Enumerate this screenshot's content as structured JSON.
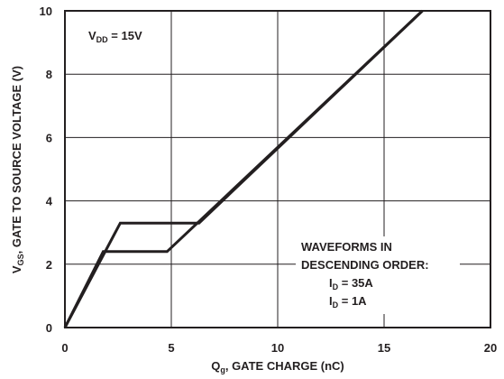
{
  "chart_data": {
    "type": "line",
    "title": "",
    "xlabel": {
      "main": "Q",
      "sub": "g",
      "rest": ", GATE CHARGE (nC)"
    },
    "ylabel": {
      "main": "V",
      "sub": "GS",
      "rest": ", GATE TO SOURCE VOLTAGE (V)"
    },
    "xlim": [
      0,
      20
    ],
    "ylim": [
      0,
      10
    ],
    "x_ticks": [
      "0",
      "5",
      "10",
      "15",
      "20"
    ],
    "y_ticks": [
      "0",
      "2",
      "4",
      "6",
      "8",
      "10"
    ],
    "grid": true,
    "series": [
      {
        "points": [
          [
            0,
            0
          ],
          [
            2.6,
            3.3
          ],
          [
            6.3,
            3.3
          ],
          [
            16.8,
            10
          ]
        ]
      },
      {
        "points": [
          [
            0,
            0
          ],
          [
            1.8,
            2.4
          ],
          [
            4.8,
            2.4
          ],
          [
            16.8,
            10
          ]
        ]
      }
    ],
    "annotations": {
      "vdd": {
        "main": "V",
        "sub": "DD",
        "rest": " = 15V"
      },
      "waveforms_line1": "WAVEFORMS IN",
      "waveforms_line2": "DESCENDING ORDER:",
      "id1": {
        "main": "I",
        "sub": "D",
        "rest": " = 35A"
      },
      "id2": {
        "main": "I",
        "sub": "D",
        "rest": " = 1A"
      }
    },
    "line_color": "#231f20"
  }
}
